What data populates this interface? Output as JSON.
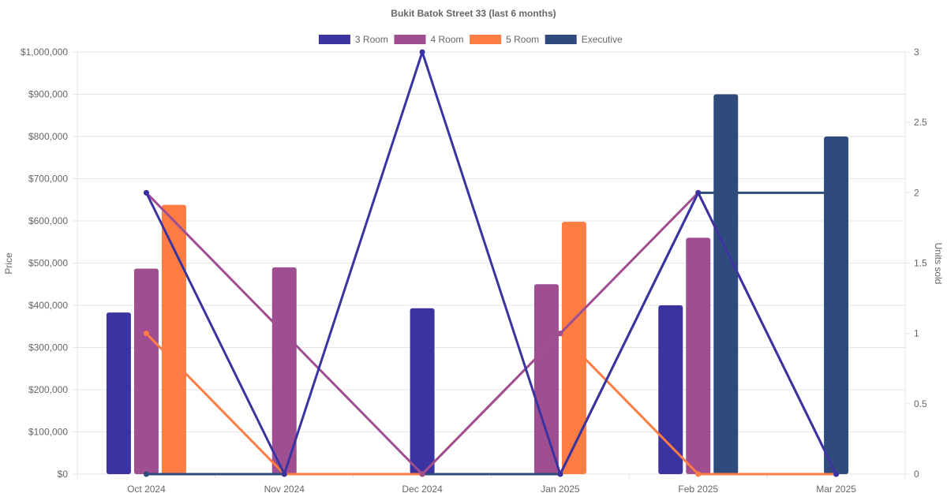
{
  "chart_data": {
    "type": "bar",
    "title": "Bukit Batok Street 33 (last 6 months)",
    "categories": [
      "Oct 2024",
      "Nov 2024",
      "Dec 2024",
      "Jan 2025",
      "Feb 2025",
      "Mar 2025"
    ],
    "ylabel": "Price",
    "y2label": "Units sold",
    "ylim": [
      0,
      1000000
    ],
    "y2lim": [
      0,
      3
    ],
    "yticks": [
      "$0",
      "$100,000",
      "$200,000",
      "$300,000",
      "$400,000",
      "$500,000",
      "$600,000",
      "$700,000",
      "$800,000",
      "$900,000",
      "$1,000,000"
    ],
    "y2ticks": [
      "0",
      "0.5",
      "1",
      "1.5",
      "2",
      "2.5",
      "3"
    ],
    "legend_position": "top-center",
    "grid": true,
    "series": [
      {
        "name": "3 Room",
        "color": "#3a33a0",
        "price": [
          383000,
          0,
          393000,
          0,
          400000,
          0
        ],
        "units": [
          2,
          0,
          3,
          0,
          2,
          0
        ]
      },
      {
        "name": "4 Room",
        "color": "#9e4e91",
        "price": [
          487000,
          490000,
          0,
          450000,
          560000,
          0
        ],
        "units": [
          2,
          1,
          0,
          1,
          2,
          0
        ]
      },
      {
        "name": "5 Room",
        "color": "#ff7c43",
        "price": [
          638000,
          0,
          0,
          598000,
          0,
          0
        ],
        "units": [
          1,
          0,
          0,
          1,
          0,
          0
        ]
      },
      {
        "name": "Executive",
        "color": "#2f4b7c",
        "price": [
          0,
          0,
          0,
          0,
          900000,
          800000
        ],
        "units": [
          0,
          0,
          0,
          0,
          2,
          2
        ]
      }
    ]
  }
}
